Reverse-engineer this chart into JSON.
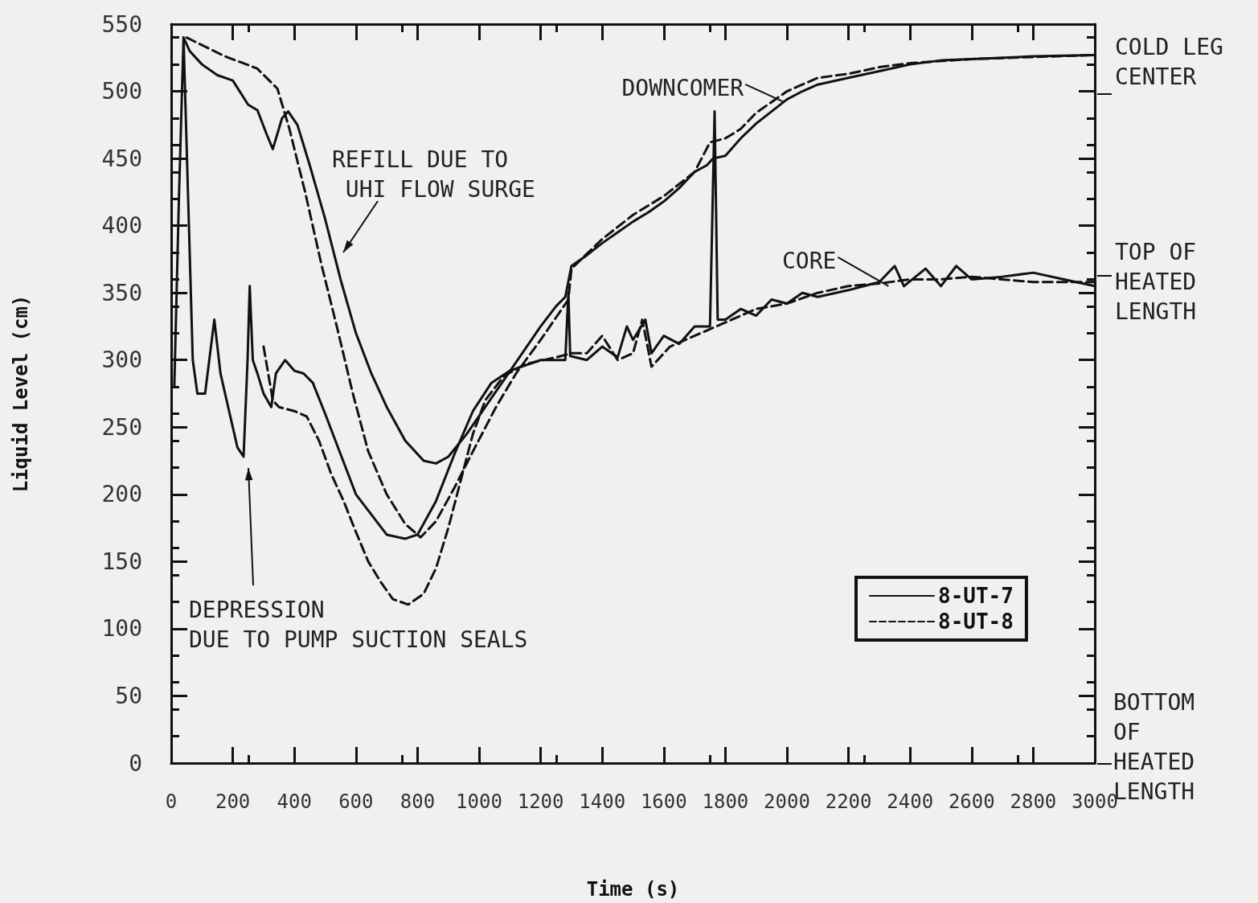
{
  "chart_data": {
    "type": "line",
    "xlabel": "Time (s)",
    "ylabel": "Liquid Level (cm)",
    "xlim": [
      0,
      3000
    ],
    "xticks": [
      0,
      200,
      400,
      600,
      800,
      1000,
      1200,
      1400,
      1600,
      1800,
      2000,
      2200,
      2400,
      2600,
      2800,
      3000
    ],
    "ylim": [
      0,
      550
    ],
    "yticks": [
      0,
      50,
      100,
      150,
      200,
      250,
      300,
      350,
      400,
      450,
      500,
      550
    ],
    "grid": false,
    "legend": "bottom right",
    "marker": "none",
    "series": [
      {
        "name": "8-UT-7",
        "color": "#111111",
        "line_style": "solid",
        "x": [
          40,
          60,
          100,
          150,
          200,
          250,
          280,
          310,
          330,
          360,
          380,
          410,
          450,
          500,
          550,
          600,
          650,
          700,
          760,
          820,
          860,
          900,
          960,
          1020,
          1080,
          1140,
          1200,
          1250,
          1280,
          1300,
          1350,
          1400,
          1450,
          1500,
          1550,
          1600,
          1650,
          1700,
          1740,
          1760,
          1800,
          1850,
          1900,
          1950,
          2000,
          2050,
          2100,
          2200,
          2300,
          2400,
          2500,
          2600,
          2800,
          3000
        ],
        "values": [
          540,
          530,
          520,
          512,
          508,
          490,
          486,
          468,
          457,
          480,
          485,
          475,
          445,
          405,
          360,
          320,
          290,
          265,
          240,
          225,
          223,
          228,
          245,
          265,
          285,
          305,
          325,
          340,
          347,
          370,
          378,
          387,
          395,
          403,
          410,
          418,
          428,
          440,
          445,
          450,
          452,
          465,
          476,
          485,
          494,
          500,
          505,
          510,
          515,
          520,
          523,
          524,
          526,
          527
        ]
      },
      {
        "name": "8-UT-8",
        "color": "#111111",
        "line_style": "dashed",
        "x": [
          50,
          175,
          279,
          345,
          384,
          436,
          488,
          540,
          590,
          640,
          700,
          760,
          810,
          860,
          920,
          980,
          1055,
          1120,
          1200,
          1290,
          1300,
          1400,
          1500,
          1600,
          1700,
          1750,
          1800,
          1850,
          1900,
          1950,
          2000,
          2050,
          2100,
          2200,
          2300,
          2400,
          2600,
          3000
        ],
        "values": [
          540,
          526,
          517,
          502,
          472,
          424,
          371,
          323,
          275,
          232,
          200,
          178,
          168,
          180,
          205,
          232,
          265,
          290,
          315,
          345,
          368,
          390,
          408,
          422,
          440,
          462,
          465,
          472,
          484,
          492,
          500,
          505,
          510,
          513,
          518,
          521,
          524,
          527
        ]
      },
      {
        "color": "#111111",
        "line_style": "solid",
        "x": [
          10,
          25,
          40,
          55,
          70,
          85,
          110,
          140,
          160,
          190,
          215,
          235,
          248,
          255,
          265,
          280,
          300,
          325,
          340,
          370,
          400,
          430,
          460,
          500,
          550,
          600,
          650,
          700,
          760,
          800,
          860,
          920,
          980,
          1040,
          1100,
          1200,
          1280,
          1290,
          1296,
          1350,
          1400,
          1450,
          1480,
          1500,
          1540,
          1560,
          1600,
          1650,
          1700,
          1750,
          1765,
          1775,
          1800,
          1850,
          1900,
          1950,
          2000,
          2050,
          2100,
          2200,
          2300,
          2350,
          2380,
          2450,
          2500,
          2550,
          2600,
          2700,
          2800,
          2900,
          3000
        ],
        "values": [
          280,
          420,
          540,
          420,
          300,
          275,
          275,
          330,
          290,
          260,
          235,
          228,
          300,
          355,
          300,
          290,
          275,
          265,
          290,
          300,
          292,
          290,
          283,
          260,
          230,
          200,
          185,
          170,
          167,
          170,
          195,
          230,
          262,
          283,
          292,
          300,
          300,
          350,
          303,
          300,
          310,
          302,
          325,
          315,
          330,
          305,
          318,
          312,
          325,
          325,
          485,
          330,
          330,
          338,
          333,
          345,
          342,
          350,
          347,
          352,
          358,
          370,
          355,
          368,
          355,
          370,
          360,
          362,
          365,
          360,
          355
        ]
      },
      {
        "color": "#111111",
        "line_style": "dashed",
        "x": [
          300,
          330,
          350,
          400,
          440,
          480,
          520,
          560,
          600,
          640,
          680,
          720,
          770,
          820,
          860,
          900,
          940,
          980,
          1020,
          1080,
          1150,
          1250,
          1300,
          1350,
          1400,
          1450,
          1500,
          1530,
          1560,
          1620,
          1700,
          1800,
          1900,
          2000,
          2100,
          2200,
          2300,
          2400,
          2500,
          2600,
          2700,
          2800,
          3000
        ],
        "values": [
          310,
          270,
          265,
          262,
          258,
          240,
          215,
          195,
          172,
          150,
          135,
          122,
          118,
          126,
          145,
          175,
          210,
          245,
          270,
          288,
          297,
          302,
          305,
          305,
          318,
          300,
          305,
          330,
          295,
          310,
          318,
          328,
          338,
          342,
          350,
          355,
          357,
          360,
          360,
          362,
          360,
          358,
          358
        ]
      }
    ],
    "annotations": [
      {
        "text": "DOWNCOMER",
        "x": 1990,
        "y": 492
      },
      {
        "text": "CORE",
        "x": 2330,
        "y": 355
      },
      "REFILL DUE TO\n UHI FLOW SURGE",
      "DEPRESSION\nDUE TO PUMP SUCTION SEALS",
      "COLD LEG\nCENTER",
      "TOP OF\nHEATED\nLENGTH",
      "BOTTOM\nOF\nHEATED\nLENGTH"
    ]
  }
}
